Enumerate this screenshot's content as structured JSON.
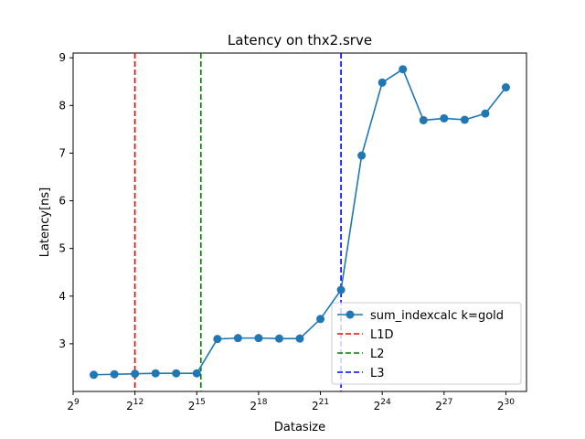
{
  "chart_data": {
    "type": "line",
    "title": "Latency on thx2.srve",
    "xlabel": "Datasize",
    "ylabel": "Latency[ns]",
    "xscale": "log2",
    "xlim": [
      9,
      31
    ],
    "ylim": [
      2.0,
      9.1
    ],
    "x_ticks": [
      {
        "base": "2",
        "exp": "9",
        "value": 9
      },
      {
        "base": "2",
        "exp": "12",
        "value": 12
      },
      {
        "base": "2",
        "exp": "15",
        "value": 15
      },
      {
        "base": "2",
        "exp": "18",
        "value": 18
      },
      {
        "base": "2",
        "exp": "21",
        "value": 21
      },
      {
        "base": "2",
        "exp": "24",
        "value": 24
      },
      {
        "base": "2",
        "exp": "27",
        "value": 27
      },
      {
        "base": "2",
        "exp": "30",
        "value": 30
      }
    ],
    "y_ticks": [
      "3",
      "4",
      "5",
      "6",
      "7",
      "8",
      "9"
    ],
    "grid": false,
    "legend_position": "lower-right",
    "series": [
      {
        "name": "sum_indexcalc k=gold",
        "color": "#1f77b4",
        "x_log2": [
          10,
          11,
          12,
          13,
          14,
          15,
          16,
          17,
          18,
          19,
          20,
          21,
          22,
          23,
          24,
          25,
          26,
          27,
          28,
          29,
          30
        ],
        "y": [
          2.35,
          2.36,
          2.37,
          2.38,
          2.38,
          2.38,
          3.1,
          3.12,
          3.12,
          3.11,
          3.11,
          3.52,
          4.13,
          6.95,
          8.48,
          8.76,
          7.69,
          7.73,
          7.7,
          7.83,
          8.38
        ]
      }
    ],
    "vlines": [
      {
        "name": "L1D",
        "x_log2": 12.0,
        "color": "#ff0000"
      },
      {
        "name": "L2",
        "x_log2": 15.2,
        "color": "#008000"
      },
      {
        "name": "L3",
        "x_log2": 22.0,
        "color": "#0000ff"
      }
    ]
  }
}
